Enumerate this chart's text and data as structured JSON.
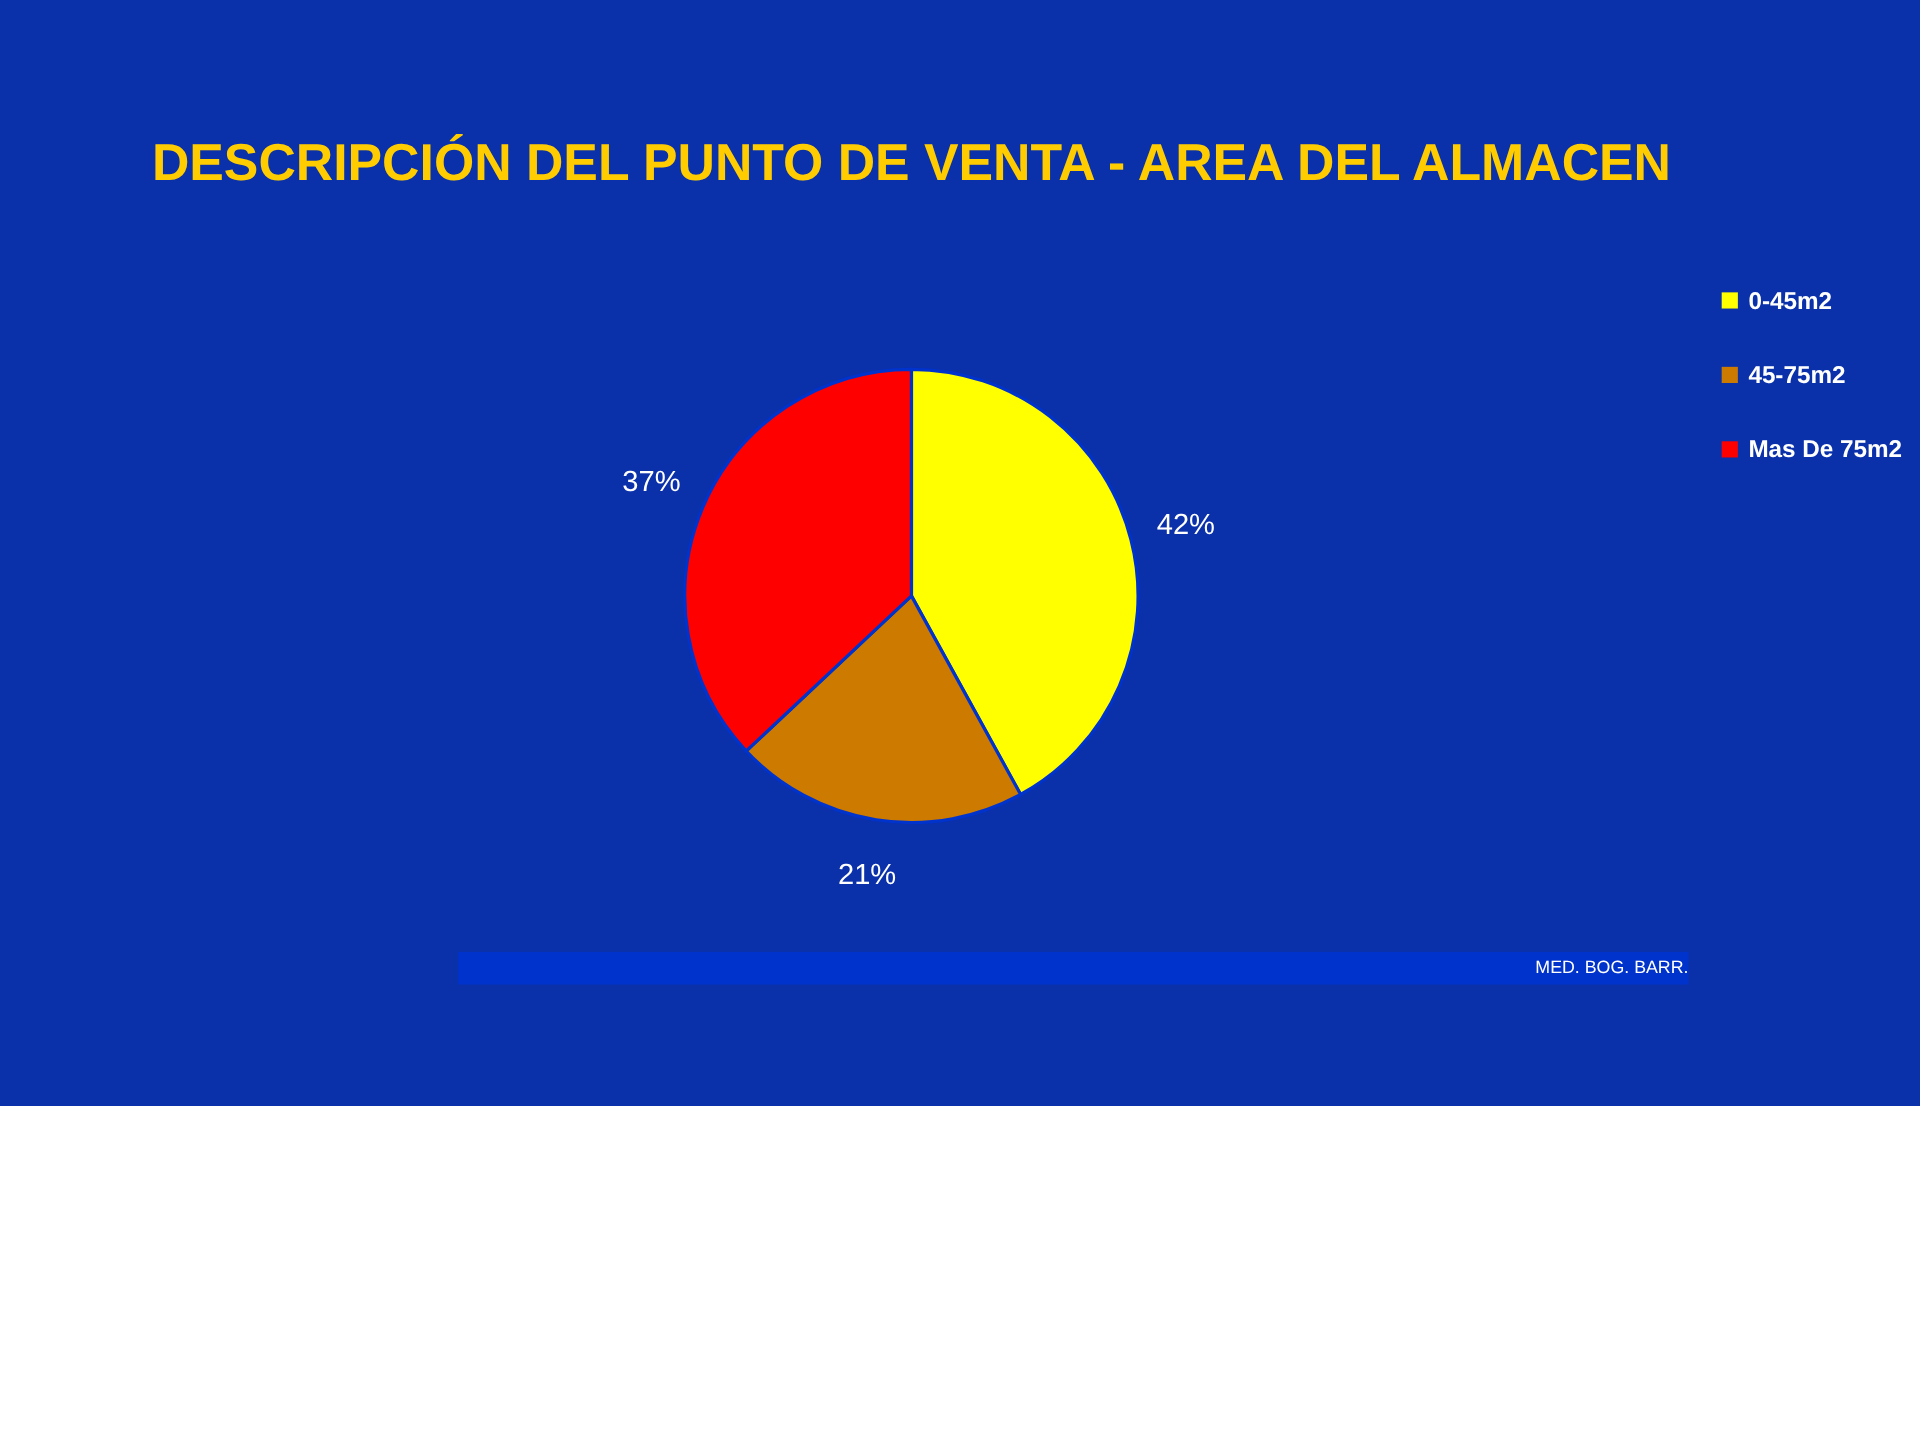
{
  "chart_data": {
    "type": "pie",
    "title": "DESCRIPCIÓN DEL PUNTO DE VENTA - AREA DEL ALMACEN",
    "categories": [
      "0-45m2",
      "45-75m2",
      "Mas De 75m2"
    ],
    "values": [
      42,
      21,
      37
    ],
    "colors": [
      "#ffff00",
      "#cc7a00",
      "#ff0000"
    ],
    "value_labels": [
      "42%",
      "21%",
      "37%"
    ],
    "legend": "right",
    "annotations": [
      "MED. BOG. BARR."
    ]
  }
}
